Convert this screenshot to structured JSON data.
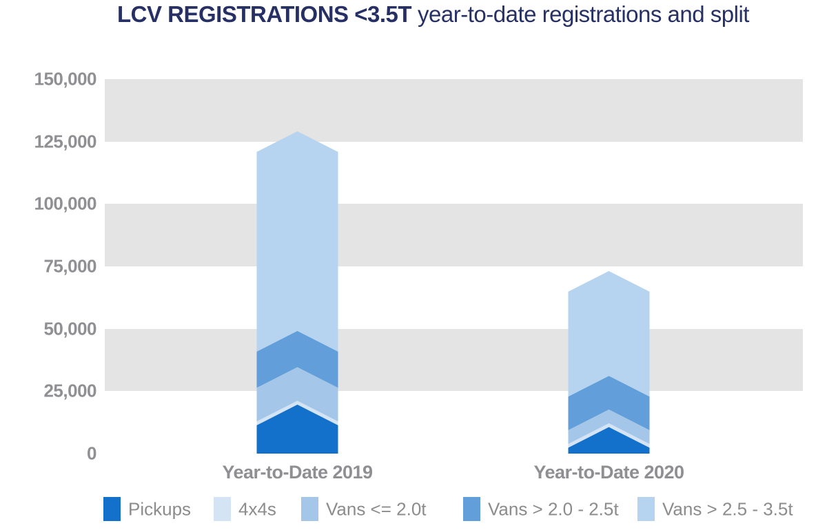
{
  "title": {
    "bold": "LCV REGISTRATIONS <3.5T",
    "regular": "year-to-date registrations and split"
  },
  "colors": {
    "title_text": "#263064",
    "axis_text": "#909094",
    "legend_text": "#8C8C8C",
    "grid_band": "#E4E4E4",
    "background": "#FFFFFF"
  },
  "chart_data": {
    "type": "bar",
    "subtype": "stacked-chevron-arrows",
    "title": "LCV REGISTRATIONS <3.5T year-to-date registrations and split",
    "categories": [
      "Year-to-Date 2019",
      "Year-to-Date 2020"
    ],
    "series": [
      {
        "name": "Pickups",
        "color": "#1471CB",
        "values": [
          15500,
          6500
        ]
      },
      {
        "name": "4x4s",
        "color": "#D5E4F4",
        "values": [
          1500,
          1500
        ]
      },
      {
        "name": "Vans <= 2.0t",
        "color": "#A3C6E9",
        "values": [
          13500,
          5500
        ]
      },
      {
        "name": "Vans > 2.0 - 2.5t",
        "color": "#629ED9",
        "values": [
          14500,
          13500
        ]
      },
      {
        "name": "Vans > 2.5 - 3.5t",
        "color": "#B6D3EF",
        "values": [
          80000,
          42000
        ]
      }
    ],
    "totals": [
      125000,
      69000
    ],
    "y_axis": {
      "tick_labels": [
        "150,000",
        "125,000",
        "100,000",
        "75,000",
        "50,000",
        "25,000",
        "0"
      ],
      "tick_values": [
        150000,
        125000,
        100000,
        75000,
        50000,
        25000,
        0
      ],
      "min": 0,
      "max": 150000,
      "grid_bands": true
    },
    "xlabel": "",
    "ylabel": "",
    "legend_position": "bottom"
  }
}
